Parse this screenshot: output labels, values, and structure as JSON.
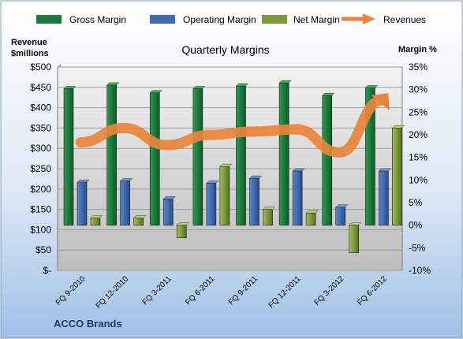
{
  "chart_data": {
    "type": "bar",
    "title": "Quarterly Margins",
    "brand": "ACCO Brands",
    "left_axis_title": [
      "Revenue",
      "$millions"
    ],
    "right_axis_title": "Margin %",
    "categories": [
      "FQ 9-2010",
      "FQ 12-2010",
      "FQ 3-2011",
      "FQ 6-2011",
      "FQ 9-2011",
      "FQ 12-2011",
      "FQ 3-2012",
      "FQ 6-2012"
    ],
    "left_axis": {
      "label": "Revenue $millions",
      "ylim": [
        0,
        500
      ],
      "tick_labels": [
        "$-",
        "$50",
        "$100",
        "$150",
        "$200",
        "$250",
        "$300",
        "$350",
        "$400",
        "$450",
        "$500"
      ]
    },
    "right_axis": {
      "label": "Margin %",
      "ylim": [
        -10,
        35
      ],
      "tick_labels": [
        "-10%",
        "-5%",
        "0%",
        "5%",
        "10%",
        "15%",
        "20%",
        "25%",
        "30%",
        "35%"
      ]
    },
    "series": [
      {
        "name": "Gross Margin",
        "type": "bar",
        "axis": "right",
        "color": "#1e7a3c",
        "values": [
          30.2,
          31.0,
          29.3,
          30.2,
          30.8,
          31.5,
          28.7,
          30.4
        ]
      },
      {
        "name": "Operating Margin",
        "type": "bar",
        "axis": "right",
        "color": "#3d6cb0",
        "values": [
          9.5,
          9.8,
          5.8,
          9.3,
          10.4,
          12.0,
          4.0,
          12.0
        ]
      },
      {
        "name": "Net Margin",
        "type": "bar",
        "axis": "right",
        "color": "#7a9a3a",
        "values": [
          1.6,
          1.6,
          -2.8,
          13.0,
          3.5,
          2.7,
          -6.1,
          21.5
        ]
      },
      {
        "name": "Revenues",
        "type": "line",
        "axis": "left",
        "color": "#e8853b",
        "values": [
          315,
          350,
          308,
          333,
          341,
          347,
          290,
          418
        ]
      }
    ],
    "legend_position": "top",
    "grid": true
  }
}
